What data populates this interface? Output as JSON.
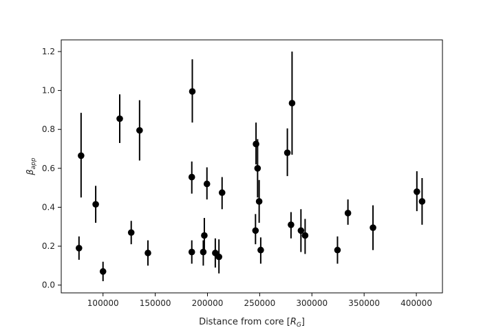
{
  "chart_data": {
    "type": "scatter",
    "title": "",
    "xlabel": "Distance from core",
    "xlabel_unit": "R",
    "xlabel_unit_sub": "G",
    "ylabel": "β",
    "ylabel_sub": "app",
    "xlim": [
      60000,
      425000
    ],
    "ylim": [
      -0.04,
      1.26
    ],
    "xticks": [
      100000,
      150000,
      200000,
      250000,
      300000,
      350000,
      400000
    ],
    "xtick_labels": [
      "100000",
      "150000",
      "200000",
      "250000",
      "300000",
      "350000",
      "400000"
    ],
    "yticks": [
      0.0,
      0.2,
      0.4,
      0.6,
      0.8,
      1.0,
      1.2
    ],
    "ytick_labels": [
      "0.0",
      "0.2",
      "0.4",
      "0.6",
      "0.8",
      "1.0",
      "1.2"
    ],
    "grid": false,
    "marker_color": "#000000",
    "points": [
      {
        "x": 77000,
        "y": 0.19,
        "lo": 0.13,
        "hi": 0.25
      },
      {
        "x": 79000,
        "y": 0.665,
        "lo": 0.45,
        "hi": 0.885
      },
      {
        "x": 93000,
        "y": 0.415,
        "lo": 0.32,
        "hi": 0.51
      },
      {
        "x": 100000,
        "y": 0.07,
        "lo": 0.02,
        "hi": 0.12
      },
      {
        "x": 116000,
        "y": 0.855,
        "lo": 0.73,
        "hi": 0.98
      },
      {
        "x": 127000,
        "y": 0.27,
        "lo": 0.21,
        "hi": 0.33
      },
      {
        "x": 135000,
        "y": 0.795,
        "lo": 0.64,
        "hi": 0.95
      },
      {
        "x": 143000,
        "y": 0.165,
        "lo": 0.1,
        "hi": 0.23
      },
      {
        "x": 185000,
        "y": 0.555,
        "lo": 0.47,
        "hi": 0.635
      },
      {
        "x": 185000,
        "y": 0.17,
        "lo": 0.11,
        "hi": 0.23
      },
      {
        "x": 185500,
        "y": 0.995,
        "lo": 0.835,
        "hi": 1.16
      },
      {
        "x": 196000,
        "y": 0.17,
        "lo": 0.1,
        "hi": 0.23
      },
      {
        "x": 197000,
        "y": 0.255,
        "lo": 0.17,
        "hi": 0.345
      },
      {
        "x": 199500,
        "y": 0.52,
        "lo": 0.44,
        "hi": 0.605
      },
      {
        "x": 207500,
        "y": 0.165,
        "lo": 0.09,
        "hi": 0.24
      },
      {
        "x": 211000,
        "y": 0.145,
        "lo": 0.06,
        "hi": 0.235
      },
      {
        "x": 214000,
        "y": 0.475,
        "lo": 0.39,
        "hi": 0.555
      },
      {
        "x": 246000,
        "y": 0.28,
        "lo": 0.21,
        "hi": 0.365
      },
      {
        "x": 246500,
        "y": 0.725,
        "lo": 0.62,
        "hi": 0.835
      },
      {
        "x": 248000,
        "y": 0.6,
        "lo": 0.45,
        "hi": 0.75
      },
      {
        "x": 249500,
        "y": 0.43,
        "lo": 0.32,
        "hi": 0.54
      },
      {
        "x": 251000,
        "y": 0.18,
        "lo": 0.11,
        "hi": 0.245
      },
      {
        "x": 276500,
        "y": 0.68,
        "lo": 0.56,
        "hi": 0.805
      },
      {
        "x": 280000,
        "y": 0.31,
        "lo": 0.24,
        "hi": 0.375
      },
      {
        "x": 281000,
        "y": 0.935,
        "lo": 0.67,
        "hi": 1.2
      },
      {
        "x": 289500,
        "y": 0.28,
        "lo": 0.17,
        "hi": 0.39
      },
      {
        "x": 293500,
        "y": 0.255,
        "lo": 0.16,
        "hi": 0.34
      },
      {
        "x": 324500,
        "y": 0.18,
        "lo": 0.11,
        "hi": 0.25
      },
      {
        "x": 334500,
        "y": 0.37,
        "lo": 0.31,
        "hi": 0.44
      },
      {
        "x": 358500,
        "y": 0.295,
        "lo": 0.18,
        "hi": 0.41
      },
      {
        "x": 400500,
        "y": 0.48,
        "lo": 0.38,
        "hi": 0.585
      },
      {
        "x": 405500,
        "y": 0.43,
        "lo": 0.31,
        "hi": 0.55
      }
    ]
  }
}
